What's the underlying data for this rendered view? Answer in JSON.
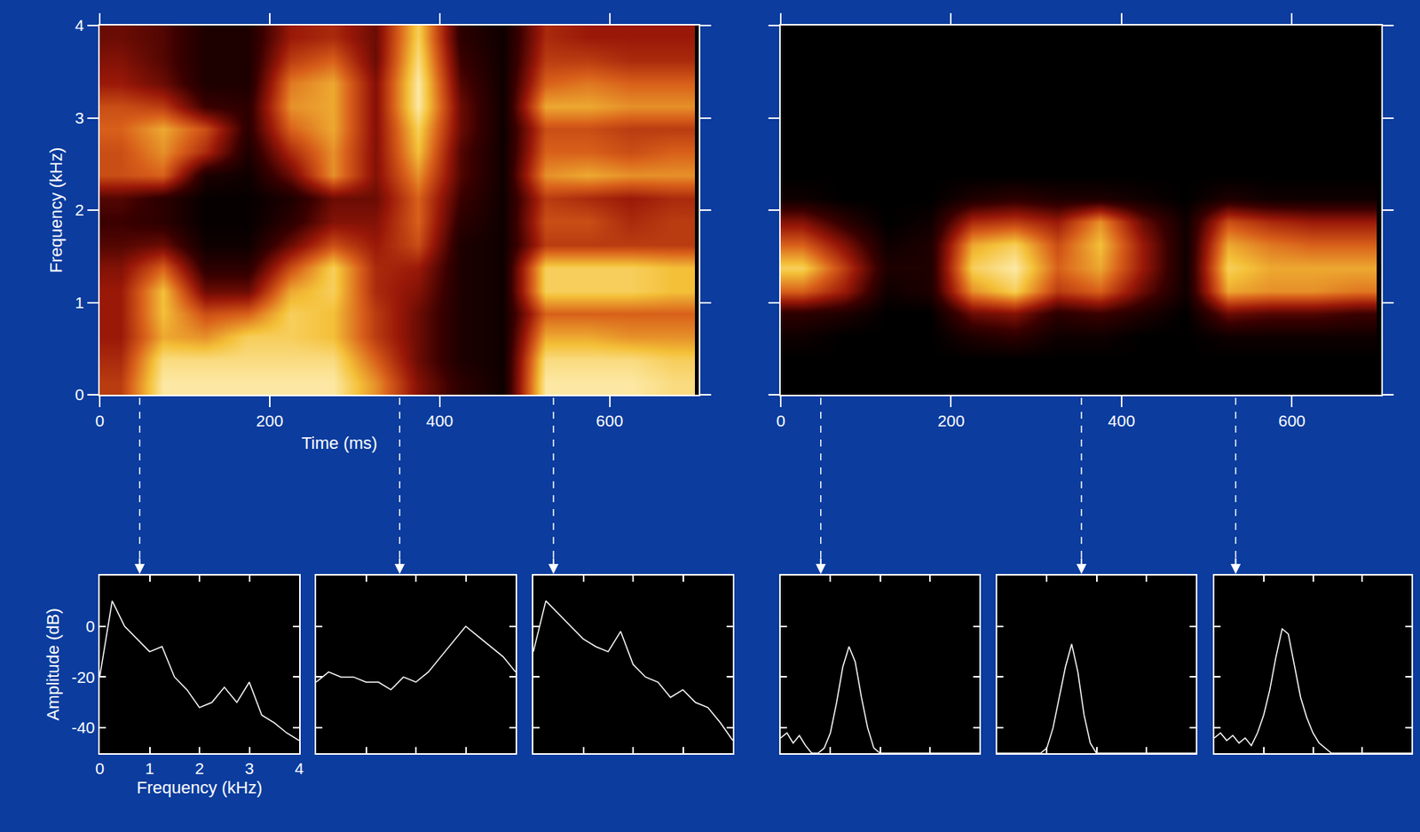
{
  "chart_data": [
    {
      "type": "heatmap",
      "x_label": "Time (ms)",
      "y_label": "Frequency (kHz)",
      "xlim": [
        0,
        705
      ],
      "xticks": [
        0,
        200,
        400,
        600
      ],
      "ylim": [
        0,
        4
      ],
      "yticks": [
        0,
        1,
        2,
        3,
        4
      ],
      "grid": false,
      "slices": [
        47,
        353,
        534
      ],
      "zlim": [
        0,
        1
      ],
      "x": [
        25,
        75,
        125,
        175,
        225,
        275,
        325,
        375,
        425,
        475,
        525,
        575,
        625,
        675
      ],
      "y": [
        0.125,
        0.375,
        0.625,
        0.875,
        1.125,
        1.375,
        1.625,
        1.875,
        2.125,
        2.375,
        2.625,
        2.875,
        3.125,
        3.375,
        3.625,
        3.875
      ],
      "z": [
        [
          0.5,
          0.95,
          0.95,
          0.95,
          0.95,
          0.95,
          0.7,
          0.35,
          0.15,
          0.05,
          0.95,
          0.95,
          0.95,
          0.9
        ],
        [
          0.45,
          0.9,
          0.9,
          0.9,
          0.9,
          0.9,
          0.6,
          0.3,
          0.1,
          0.05,
          0.9,
          0.9,
          0.9,
          0.85
        ],
        [
          0.4,
          0.75,
          0.7,
          0.85,
          0.85,
          0.8,
          0.5,
          0.3,
          0.1,
          0.05,
          0.75,
          0.75,
          0.7,
          0.7
        ],
        [
          0.4,
          0.8,
          0.55,
          0.6,
          0.85,
          0.8,
          0.5,
          0.3,
          0.1,
          0.05,
          0.6,
          0.6,
          0.6,
          0.6
        ],
        [
          0.4,
          0.8,
          0.3,
          0.3,
          0.75,
          0.85,
          0.45,
          0.35,
          0.1,
          0.05,
          0.85,
          0.85,
          0.85,
          0.8
        ],
        [
          0.35,
          0.6,
          0.15,
          0.15,
          0.55,
          0.85,
          0.45,
          0.4,
          0.1,
          0.05,
          0.85,
          0.85,
          0.85,
          0.8
        ],
        [
          0.25,
          0.3,
          0.05,
          0.05,
          0.3,
          0.55,
          0.4,
          0.55,
          0.1,
          0.05,
          0.5,
          0.5,
          0.5,
          0.5
        ],
        [
          0.2,
          0.15,
          0.02,
          0.02,
          0.15,
          0.35,
          0.35,
          0.6,
          0.15,
          0.05,
          0.55,
          0.55,
          0.45,
          0.5
        ],
        [
          0.25,
          0.15,
          0.02,
          0.02,
          0.1,
          0.3,
          0.3,
          0.6,
          0.2,
          0.05,
          0.5,
          0.45,
          0.4,
          0.45
        ],
        [
          0.55,
          0.6,
          0.1,
          0.05,
          0.3,
          0.7,
          0.35,
          0.7,
          0.25,
          0.05,
          0.7,
          0.75,
          0.7,
          0.7
        ],
        [
          0.55,
          0.7,
          0.45,
          0.1,
          0.45,
          0.7,
          0.35,
          0.8,
          0.25,
          0.05,
          0.6,
          0.6,
          0.55,
          0.6
        ],
        [
          0.6,
          0.75,
          0.55,
          0.15,
          0.6,
          0.75,
          0.35,
          0.85,
          0.3,
          0.05,
          0.55,
          0.55,
          0.5,
          0.5
        ],
        [
          0.55,
          0.5,
          0.2,
          0.15,
          0.7,
          0.75,
          0.35,
          0.95,
          0.3,
          0.05,
          0.75,
          0.75,
          0.7,
          0.7
        ],
        [
          0.4,
          0.3,
          0.1,
          0.1,
          0.65,
          0.75,
          0.35,
          0.95,
          0.25,
          0.05,
          0.6,
          0.65,
          0.6,
          0.6
        ],
        [
          0.35,
          0.25,
          0.1,
          0.1,
          0.5,
          0.6,
          0.3,
          0.9,
          0.2,
          0.05,
          0.5,
          0.5,
          0.45,
          0.45
        ],
        [
          0.3,
          0.25,
          0.1,
          0.1,
          0.4,
          0.45,
          0.3,
          0.85,
          0.15,
          0.05,
          0.45,
          0.4,
          0.4,
          0.4
        ]
      ]
    },
    {
      "type": "heatmap",
      "xlim": [
        0,
        705
      ],
      "xticks": [
        0,
        200,
        400,
        600
      ],
      "ylim": [
        0,
        4
      ],
      "yticks": [
        0,
        1,
        2,
        3,
        4
      ],
      "grid": false,
      "tick_labels": "x",
      "slices": [
        47,
        353,
        534
      ],
      "zlim": [
        0,
        1
      ],
      "x": [
        25,
        75,
        125,
        175,
        225,
        275,
        325,
        375,
        425,
        475,
        525,
        575,
        625,
        675
      ],
      "y": [
        0.125,
        0.375,
        0.625,
        0.875,
        1.125,
        1.375,
        1.625,
        1.875,
        2.125,
        2.375,
        2.625,
        2.875,
        3.125,
        3.375,
        3.625,
        3.875
      ],
      "z": [
        [
          0,
          0,
          0,
          0,
          0,
          0,
          0,
          0,
          0,
          0,
          0,
          0,
          0,
          0
        ],
        [
          0,
          0,
          0,
          0,
          0,
          0,
          0,
          0,
          0,
          0,
          0,
          0,
          0,
          0
        ],
        [
          0.05,
          0,
          0,
          0,
          0.1,
          0.15,
          0.05,
          0.05,
          0,
          0,
          0.05,
          0.05,
          0.05,
          0.05
        ],
        [
          0.15,
          0.1,
          0,
          0,
          0.3,
          0.35,
          0.15,
          0.2,
          0.1,
          0,
          0.3,
          0.25,
          0.25,
          0.2
        ],
        [
          0.6,
          0.4,
          0.05,
          0.1,
          0.7,
          0.85,
          0.5,
          0.6,
          0.3,
          0.05,
          0.75,
          0.7,
          0.7,
          0.65
        ],
        [
          0.85,
          0.5,
          0.1,
          0.1,
          0.85,
          0.95,
          0.6,
          0.75,
          0.4,
          0.05,
          0.85,
          0.75,
          0.75,
          0.75
        ],
        [
          0.6,
          0.35,
          0.05,
          0.1,
          0.75,
          0.85,
          0.55,
          0.8,
          0.4,
          0.05,
          0.75,
          0.65,
          0.6,
          0.6
        ],
        [
          0.35,
          0.15,
          0,
          0.05,
          0.45,
          0.5,
          0.4,
          0.7,
          0.3,
          0.05,
          0.55,
          0.45,
          0.4,
          0.4
        ],
        [
          0.05,
          0,
          0,
          0,
          0.1,
          0.15,
          0.1,
          0.1,
          0.05,
          0,
          0.1,
          0.05,
          0.05,
          0.05
        ],
        [
          0,
          0,
          0,
          0,
          0,
          0,
          0,
          0,
          0,
          0,
          0,
          0,
          0,
          0
        ],
        [
          0,
          0,
          0,
          0,
          0,
          0,
          0,
          0,
          0,
          0,
          0,
          0,
          0,
          0
        ],
        [
          0,
          0,
          0,
          0,
          0,
          0,
          0,
          0,
          0,
          0,
          0,
          0,
          0,
          0
        ],
        [
          0,
          0,
          0,
          0,
          0,
          0,
          0,
          0,
          0,
          0,
          0,
          0,
          0,
          0
        ],
        [
          0,
          0,
          0,
          0,
          0,
          0,
          0,
          0,
          0,
          0,
          0,
          0,
          0,
          0
        ],
        [
          0,
          0,
          0,
          0,
          0,
          0,
          0,
          0,
          0,
          0,
          0,
          0,
          0,
          0
        ],
        [
          0,
          0,
          0,
          0,
          0,
          0,
          0,
          0,
          0,
          0,
          0,
          0,
          0,
          0
        ]
      ]
    },
    {
      "type": "line",
      "x_label": "Frequency (kHz)",
      "y_label": "Amplitude (dB)",
      "color": "#ffffff",
      "xlim": [
        0,
        4
      ],
      "xticks": [
        0,
        1,
        2,
        3,
        4
      ],
      "ylim": [
        -50,
        20
      ],
      "yticks": [
        0,
        -20,
        -40
      ],
      "grid": false,
      "x": [
        0,
        0.25,
        0.5,
        0.75,
        1,
        1.25,
        1.5,
        1.75,
        2,
        2.25,
        2.5,
        2.75,
        3,
        3.25,
        3.5,
        3.75,
        4
      ],
      "values": [
        -20,
        10,
        0,
        -5,
        -10,
        -8,
        -20,
        -25,
        -32,
        -30,
        -24,
        -30,
        -22,
        -35,
        -38,
        -42,
        -45
      ]
    },
    {
      "type": "line",
      "color": "#ffffff",
      "tick_labels": false,
      "xlim": [
        0,
        4
      ],
      "xticks": [
        0,
        1,
        2,
        3,
        4
      ],
      "ylim": [
        -50,
        20
      ],
      "yticks": [
        0,
        -20,
        -40
      ],
      "grid": false,
      "x": [
        0,
        0.25,
        0.5,
        0.75,
        1,
        1.25,
        1.5,
        1.75,
        2,
        2.25,
        2.5,
        2.75,
        3,
        3.25,
        3.5,
        3.75,
        4
      ],
      "values": [
        -22,
        -18,
        -20,
        -20,
        -22,
        -22,
        -25,
        -20,
        -22,
        -18,
        -12,
        -6,
        0,
        -4,
        -8,
        -12,
        -18
      ]
    },
    {
      "type": "line",
      "color": "#ffffff",
      "tick_labels": false,
      "xlim": [
        0,
        4
      ],
      "xticks": [
        0,
        1,
        2,
        3,
        4
      ],
      "ylim": [
        -50,
        20
      ],
      "yticks": [
        0,
        -20,
        -40
      ],
      "grid": false,
      "x": [
        0,
        0.25,
        0.5,
        0.75,
        1,
        1.25,
        1.5,
        1.75,
        2,
        2.25,
        2.5,
        2.75,
        3,
        3.25,
        3.5,
        3.75,
        4
      ],
      "values": [
        -10,
        10,
        5,
        0,
        -5,
        -8,
        -10,
        -2,
        -15,
        -20,
        -22,
        -28,
        -25,
        -30,
        -32,
        -38,
        -45
      ]
    },
    {
      "type": "line",
      "color": "#ffffff",
      "tick_labels": false,
      "xlim": [
        0,
        4
      ],
      "xticks": [
        0,
        1,
        2,
        3,
        4
      ],
      "ylim": [
        -50,
        20
      ],
      "yticks": [
        0,
        -20,
        -40
      ],
      "grid": false,
      "x": [
        0,
        0.125,
        0.25,
        0.375,
        0.5,
        0.625,
        0.75,
        0.875,
        1,
        1.125,
        1.25,
        1.375,
        1.5,
        1.625,
        1.75,
        1.875,
        2,
        2.125,
        2.25,
        2.375,
        2.5,
        2.625,
        2.75,
        2.875,
        3,
        3.125,
        3.25,
        3.375,
        3.5,
        3.625,
        3.75,
        3.875,
        4
      ],
      "values": [
        -44,
        -42,
        -46,
        -43,
        -47,
        -50,
        -50,
        -48,
        -42,
        -30,
        -16,
        -8,
        -14,
        -28,
        -40,
        -48,
        -50,
        -50,
        -50,
        -50,
        -50,
        -50,
        -50,
        -50,
        -50,
        -50,
        -50,
        -50,
        -50,
        -50,
        -50,
        -50,
        -50
      ]
    },
    {
      "type": "line",
      "color": "#ffffff",
      "tick_labels": false,
      "xlim": [
        0,
        4
      ],
      "xticks": [
        0,
        1,
        2,
        3,
        4
      ],
      "ylim": [
        -50,
        20
      ],
      "yticks": [
        0,
        -20,
        -40
      ],
      "grid": false,
      "x": [
        0,
        0.125,
        0.25,
        0.375,
        0.5,
        0.625,
        0.75,
        0.875,
        1,
        1.125,
        1.25,
        1.375,
        1.5,
        1.625,
        1.75,
        1.875,
        2,
        2.125,
        2.25,
        2.375,
        2.5,
        2.625,
        2.75,
        2.875,
        3,
        3.125,
        3.25,
        3.375,
        3.5,
        3.625,
        3.75,
        3.875,
        4
      ],
      "values": [
        -50,
        -50,
        -50,
        -50,
        -50,
        -50,
        -50,
        -50,
        -48,
        -40,
        -28,
        -16,
        -7,
        -18,
        -35,
        -46,
        -50,
        -50,
        -50,
        -50,
        -50,
        -50,
        -50,
        -50,
        -50,
        -50,
        -50,
        -50,
        -50,
        -50,
        -50,
        -50,
        -50
      ]
    },
    {
      "type": "line",
      "color": "#ffffff",
      "tick_labels": false,
      "xlim": [
        0,
        4
      ],
      "xticks": [
        0,
        1,
        2,
        3,
        4
      ],
      "ylim": [
        -50,
        20
      ],
      "yticks": [
        0,
        -20,
        -40
      ],
      "grid": false,
      "x": [
        0,
        0.125,
        0.25,
        0.375,
        0.5,
        0.625,
        0.75,
        0.875,
        1,
        1.125,
        1.25,
        1.375,
        1.5,
        1.625,
        1.75,
        1.875,
        2,
        2.125,
        2.25,
        2.375,
        2.5,
        2.625,
        2.75,
        2.875,
        3,
        3.125,
        3.25,
        3.375,
        3.5,
        3.625,
        3.75,
        3.875,
        4
      ],
      "values": [
        -44,
        -42,
        -45,
        -43,
        -46,
        -44,
        -47,
        -42,
        -35,
        -25,
        -12,
        -1,
        -3,
        -15,
        -28,
        -36,
        -42,
        -46,
        -48,
        -50,
        -50,
        -50,
        -50,
        -50,
        -50,
        -50,
        -50,
        -50,
        -50,
        -50,
        -50,
        -50,
        -50
      ]
    }
  ]
}
